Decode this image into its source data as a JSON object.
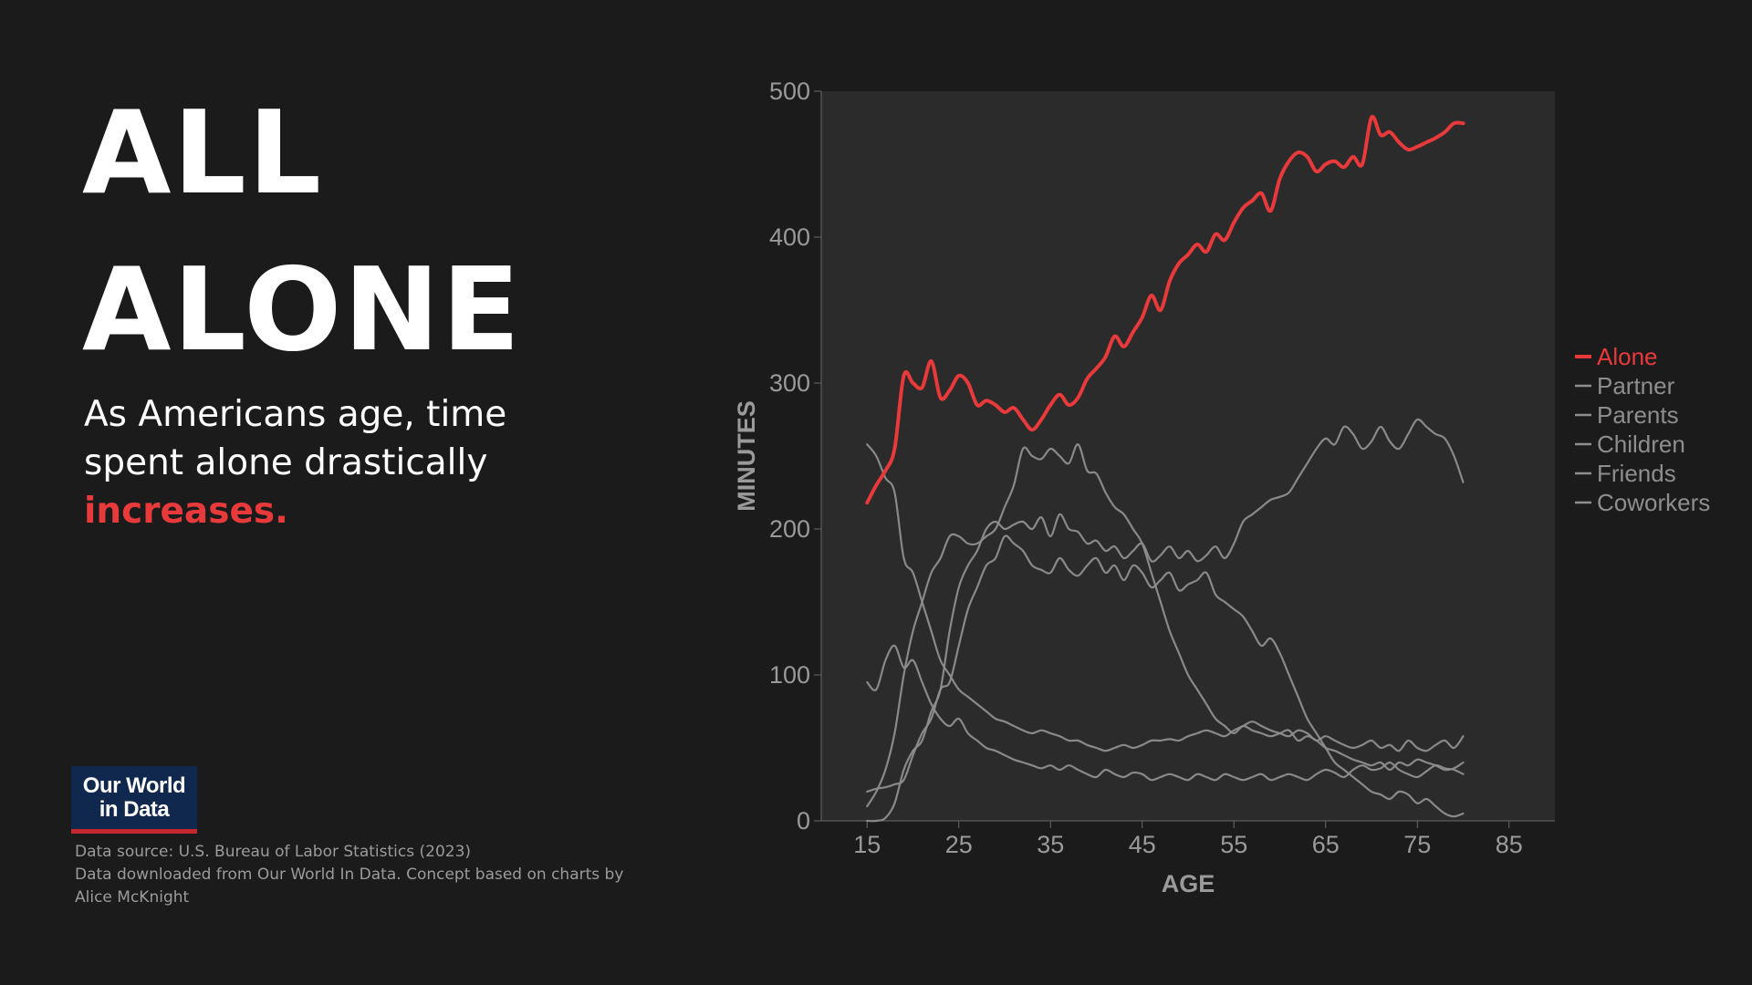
{
  "slide": {
    "title_lines": [
      "ALL",
      "ALONE"
    ],
    "subtitle": "As Americans age, time spent alone drastically",
    "subtitle_emphasis": "increases.",
    "logo_lines": [
      "Our World",
      "in Data"
    ],
    "source_lines": [
      "Data source: U.S. Bureau of Labor Statistics (2023)",
      "Data downloaded from Our World In Data. Concept based on charts by",
      "Alice McKnight"
    ]
  },
  "colors": {
    "background": "#1b1b1c",
    "plot_background": "#2b2b2b",
    "accent": "#e8393b",
    "series_gray": "#8e8e8e",
    "text": "#ffffff",
    "muted_text": "#9b9b9b"
  },
  "chart_data": {
    "type": "line",
    "title": "",
    "xlabel": "AGE",
    "ylabel": "MINUTES",
    "xlim": [
      10,
      90
    ],
    "ylim": [
      0,
      500
    ],
    "xticks": [
      15,
      25,
      35,
      45,
      55,
      65,
      75,
      85
    ],
    "yticks": [
      0,
      100,
      200,
      300,
      400,
      500
    ],
    "grid": false,
    "legend_position": "right",
    "series": [
      {
        "name": "Alone",
        "color": "#e8393b",
        "x": [
          15,
          16,
          17,
          18,
          19,
          20,
          21,
          22,
          23,
          24,
          25,
          26,
          27,
          28,
          29,
          30,
          31,
          32,
          33,
          34,
          35,
          36,
          37,
          38,
          39,
          40,
          41,
          42,
          43,
          44,
          45,
          46,
          47,
          48,
          49,
          50,
          51,
          52,
          53,
          54,
          55,
          56,
          57,
          58,
          59,
          60,
          61,
          62,
          63,
          64,
          65,
          66,
          67,
          68,
          69,
          70,
          71,
          72,
          73,
          74,
          75,
          76,
          77,
          78,
          79,
          80
        ],
        "y": [
          218,
          230,
          240,
          255,
          305,
          300,
          297,
          315,
          290,
          295,
          305,
          300,
          285,
          288,
          285,
          280,
          283,
          275,
          268,
          275,
          285,
          292,
          285,
          290,
          303,
          310,
          318,
          332,
          325,
          335,
          345,
          360,
          350,
          370,
          382,
          388,
          395,
          390,
          402,
          398,
          410,
          420,
          425,
          430,
          418,
          440,
          452,
          458,
          455,
          445,
          450,
          452,
          448,
          455,
          450,
          482,
          470,
          472,
          465,
          460,
          462,
          465,
          468,
          472,
          478,
          478
        ]
      },
      {
        "name": "Partner",
        "color": "#8e8e8e",
        "x": [
          15,
          16,
          17,
          18,
          19,
          20,
          21,
          22,
          23,
          24,
          25,
          26,
          27,
          28,
          29,
          30,
          31,
          32,
          33,
          34,
          35,
          36,
          37,
          38,
          39,
          40,
          41,
          42,
          43,
          44,
          45,
          46,
          47,
          48,
          49,
          50,
          51,
          52,
          53,
          54,
          55,
          56,
          57,
          58,
          59,
          60,
          61,
          62,
          63,
          64,
          65,
          66,
          67,
          68,
          69,
          70,
          71,
          72,
          73,
          74,
          75,
          76,
          77,
          78,
          79,
          80
        ],
        "y": [
          0,
          0,
          2,
          12,
          35,
          48,
          55,
          75,
          90,
          130,
          160,
          175,
          185,
          200,
          205,
          200,
          203,
          205,
          200,
          208,
          195,
          210,
          200,
          198,
          190,
          192,
          185,
          188,
          180,
          185,
          190,
          178,
          182,
          188,
          180,
          185,
          178,
          182,
          188,
          180,
          190,
          205,
          210,
          215,
          220,
          222,
          225,
          235,
          245,
          255,
          262,
          258,
          270,
          265,
          255,
          260,
          270,
          260,
          255,
          265,
          275,
          270,
          265,
          262,
          250,
          232
        ]
      },
      {
        "name": "Parents",
        "color": "#8e8e8e",
        "x": [
          15,
          16,
          17,
          18,
          19,
          20,
          21,
          22,
          23,
          24,
          25,
          26,
          27,
          28,
          29,
          30,
          31,
          32,
          33,
          34,
          35,
          36,
          37,
          38,
          39,
          40,
          41,
          42,
          43,
          44,
          45,
          46,
          47,
          48,
          49,
          50,
          51,
          52,
          53,
          54,
          55,
          56,
          57,
          58,
          59,
          60,
          61,
          62,
          63,
          64,
          65,
          66,
          67,
          68,
          69,
          70,
          71,
          72,
          73,
          74,
          75,
          76,
          77,
          78,
          79,
          80
        ],
        "y": [
          258,
          250,
          235,
          225,
          180,
          170,
          150,
          130,
          110,
          100,
          90,
          85,
          80,
          75,
          70,
          68,
          65,
          62,
          60,
          62,
          60,
          58,
          55,
          55,
          52,
          50,
          48,
          50,
          52,
          50,
          52,
          55,
          55,
          56,
          55,
          58,
          60,
          62,
          60,
          58,
          62,
          65,
          68,
          65,
          62,
          60,
          58,
          62,
          60,
          55,
          58,
          55,
          52,
          50,
          52,
          55,
          50,
          52,
          48,
          55,
          50,
          48,
          52,
          55,
          50,
          58
        ]
      },
      {
        "name": "Children",
        "color": "#8e8e8e",
        "x": [
          15,
          16,
          17,
          18,
          19,
          20,
          21,
          22,
          23,
          24,
          25,
          26,
          27,
          28,
          29,
          30,
          31,
          32,
          33,
          34,
          35,
          36,
          37,
          38,
          39,
          40,
          41,
          42,
          43,
          44,
          45,
          46,
          47,
          48,
          49,
          50,
          51,
          52,
          53,
          54,
          55,
          56,
          57,
          58,
          59,
          60,
          61,
          62,
          63,
          64,
          65,
          66,
          67,
          68,
          69,
          70,
          71,
          72,
          73,
          74,
          75,
          76,
          77,
          78,
          79,
          80
        ],
        "y": [
          10,
          20,
          35,
          60,
          100,
          130,
          150,
          170,
          180,
          195,
          195,
          190,
          190,
          195,
          200,
          215,
          230,
          255,
          250,
          248,
          255,
          250,
          245,
          258,
          240,
          238,
          225,
          215,
          210,
          200,
          190,
          170,
          150,
          130,
          115,
          100,
          90,
          80,
          70,
          65,
          60,
          65,
          62,
          60,
          58,
          60,
          62,
          55,
          58,
          55,
          50,
          48,
          45,
          42,
          40,
          38,
          40,
          35,
          40,
          38,
          42,
          40,
          38,
          35,
          36,
          40
        ]
      },
      {
        "name": "Friends",
        "color": "#8e8e8e",
        "x": [
          15,
          16,
          17,
          18,
          19,
          20,
          21,
          22,
          23,
          24,
          25,
          26,
          27,
          28,
          29,
          30,
          31,
          32,
          33,
          34,
          35,
          36,
          37,
          38,
          39,
          40,
          41,
          42,
          43,
          44,
          45,
          46,
          47,
          48,
          49,
          50,
          51,
          52,
          53,
          54,
          55,
          56,
          57,
          58,
          59,
          60,
          61,
          62,
          63,
          64,
          65,
          66,
          67,
          68,
          69,
          70,
          71,
          72,
          73,
          74,
          75,
          76,
          77,
          78,
          79,
          80
        ],
        "y": [
          95,
          90,
          110,
          120,
          105,
          110,
          95,
          80,
          70,
          65,
          70,
          60,
          55,
          50,
          48,
          45,
          42,
          40,
          38,
          36,
          38,
          35,
          38,
          35,
          32,
          30,
          35,
          32,
          30,
          33,
          32,
          28,
          30,
          32,
          30,
          28,
          32,
          30,
          28,
          32,
          30,
          28,
          30,
          32,
          28,
          30,
          32,
          30,
          28,
          32,
          35,
          33,
          30,
          35,
          38,
          35,
          36,
          40,
          35,
          32,
          30,
          34,
          38,
          36,
          35,
          32
        ]
      },
      {
        "name": "Coworkers",
        "color": "#8e8e8e",
        "x": [
          15,
          16,
          17,
          18,
          19,
          20,
          21,
          22,
          23,
          24,
          25,
          26,
          27,
          28,
          29,
          30,
          31,
          32,
          33,
          34,
          35,
          36,
          37,
          38,
          39,
          40,
          41,
          42,
          43,
          44,
          45,
          46,
          47,
          48,
          49,
          50,
          51,
          52,
          53,
          54,
          55,
          56,
          57,
          58,
          59,
          60,
          61,
          62,
          63,
          64,
          65,
          66,
          67,
          68,
          69,
          70,
          71,
          72,
          73,
          74,
          75,
          76,
          77,
          78,
          79,
          80
        ],
        "y": [
          20,
          22,
          23,
          25,
          28,
          45,
          60,
          70,
          90,
          95,
          120,
          145,
          160,
          175,
          180,
          195,
          190,
          185,
          175,
          172,
          170,
          180,
          172,
          168,
          175,
          180,
          170,
          175,
          165,
          175,
          170,
          160,
          165,
          170,
          158,
          162,
          165,
          170,
          155,
          150,
          145,
          140,
          130,
          120,
          125,
          115,
          100,
          85,
          70,
          60,
          50,
          40,
          35,
          30,
          25,
          20,
          18,
          15,
          20,
          18,
          12,
          15,
          10,
          5,
          3,
          5
        ]
      }
    ]
  }
}
